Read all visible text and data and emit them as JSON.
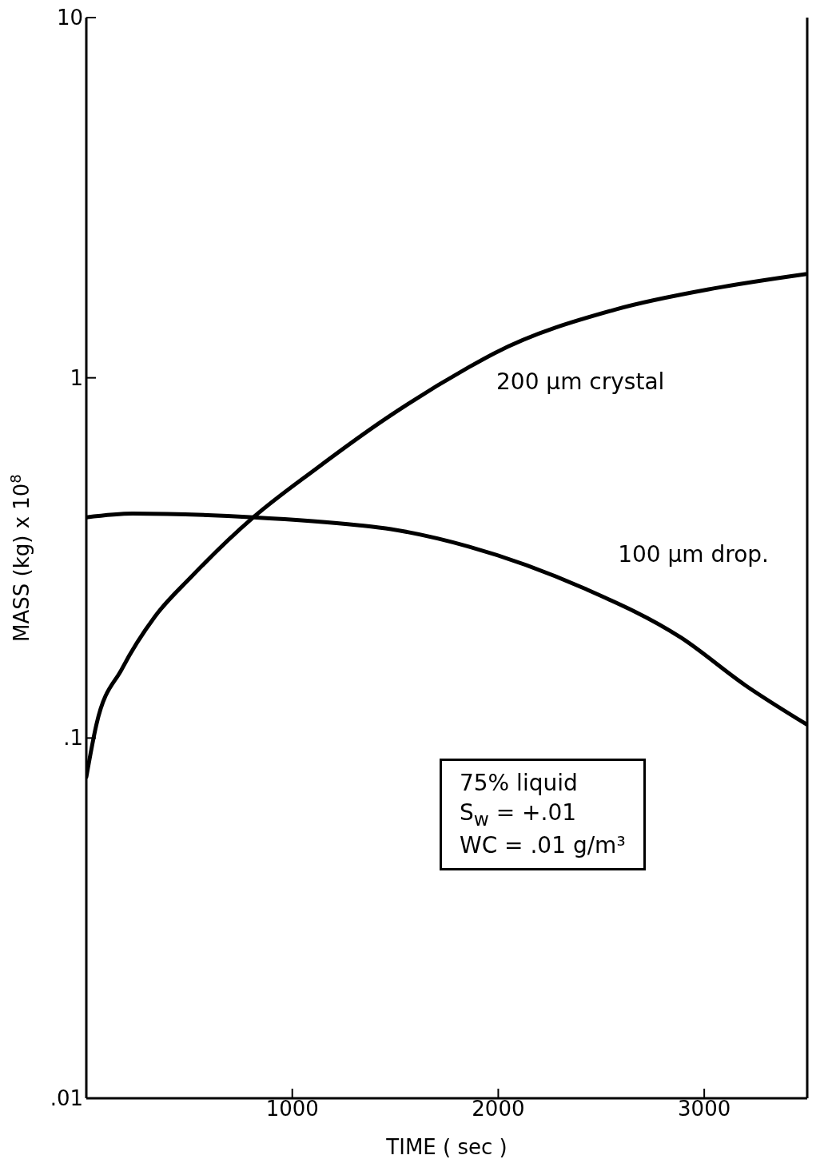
{
  "chart_data": {
    "type": "line",
    "xlabel": "TIME ( sec )",
    "ylabel": "MASS (kg) x 10$^{8}$",
    "log": "y",
    "xlim": [
      0,
      3500
    ],
    "xticks": [
      1000,
      2000,
      3000
    ],
    "ylim": [
      0.01,
      10
    ],
    "yticks": [
      {
        "value": 0.01,
        "label": ".01"
      },
      {
        "value": 0.1,
        "label": ".1"
      },
      {
        "value": 1,
        "label": "1"
      },
      {
        "value": 10,
        "label": "10"
      }
    ],
    "marker": "none",
    "line_style": "solid",
    "series": [
      {
        "name": "200 μm crystal",
        "color": "#000000",
        "x": [
          0,
          49,
          174,
          332,
          509,
          811,
          1117,
          1453,
          1857,
          1981,
          2574,
          3045,
          3491
        ],
        "values": [
          0.078,
          0.109,
          0.156,
          0.217,
          0.28,
          0.41,
          0.56,
          0.77,
          1.07,
          1.17,
          1.55,
          1.77,
          1.94
        ]
      },
      {
        "name": "100 μm drop.",
        "color": "#000000",
        "x": [
          0,
          225,
          811,
          1317,
          1479,
          1857,
          2419,
          2887,
          3200,
          3498
        ],
        "values": [
          0.41,
          0.42,
          0.41,
          0.39,
          0.38,
          0.34,
          0.26,
          0.19,
          0.14,
          0.109
        ]
      }
    ],
    "annotations": [
      "75% liquid",
      "S$_{w}$ = +.01",
      "WC = .01 g/m³"
    ]
  }
}
